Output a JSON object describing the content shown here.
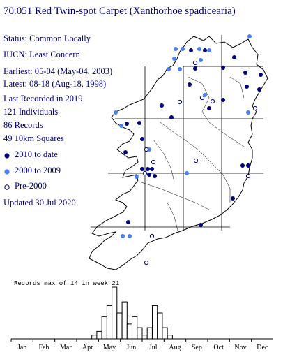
{
  "header": {
    "title": "70.051 Red Twin-spot Carpet (Xanthorhoe spadicearia)"
  },
  "info": {
    "status": "Status: Common Locally",
    "iucn": "IUCN: Least Concern",
    "earliest": "Earliest: 05-04 (May-04, 2003)",
    "latest": "Latest: 08-18 (Aug-18, 1998)",
    "last_recorded": "Last Recorded in 2019",
    "individuals": "121 Individuals",
    "records": "86 Records",
    "squares": "49 10km Squares"
  },
  "legend": {
    "items": [
      {
        "label": "2010 to date",
        "color": "#00007a",
        "symbol": "filled-dot-icon"
      },
      {
        "label": "2000 to 2009",
        "color": "#4a7ff0",
        "symbol": "filled-dot-icon"
      },
      {
        "label": "Pre-2000",
        "color": "#00007a",
        "symbol": "open-circle-icon"
      }
    ]
  },
  "updated": "Updated 30 Jul 2020",
  "chart_data": {
    "type": "bar",
    "title": "Records max of 14 in week 21",
    "max_value": 14,
    "months": [
      "Jan",
      "Feb",
      "Mar",
      "Apr",
      "May",
      "Jun",
      "Jul",
      "Aug",
      "Sep",
      "Oct",
      "Nov",
      "Dec"
    ],
    "weeks": [
      17,
      18,
      19,
      20,
      21,
      22,
      23,
      24,
      25,
      26,
      27,
      28,
      29,
      30,
      31,
      32,
      33
    ],
    "values": [
      1,
      2,
      6,
      9,
      14,
      7,
      10,
      4,
      6,
      3,
      1,
      3,
      9,
      7,
      3,
      1,
      0
    ]
  },
  "colors": {
    "recent": "#00007a",
    "mid": "#4a7ff0",
    "map_outline": "#000000",
    "grid": "#000000"
  }
}
